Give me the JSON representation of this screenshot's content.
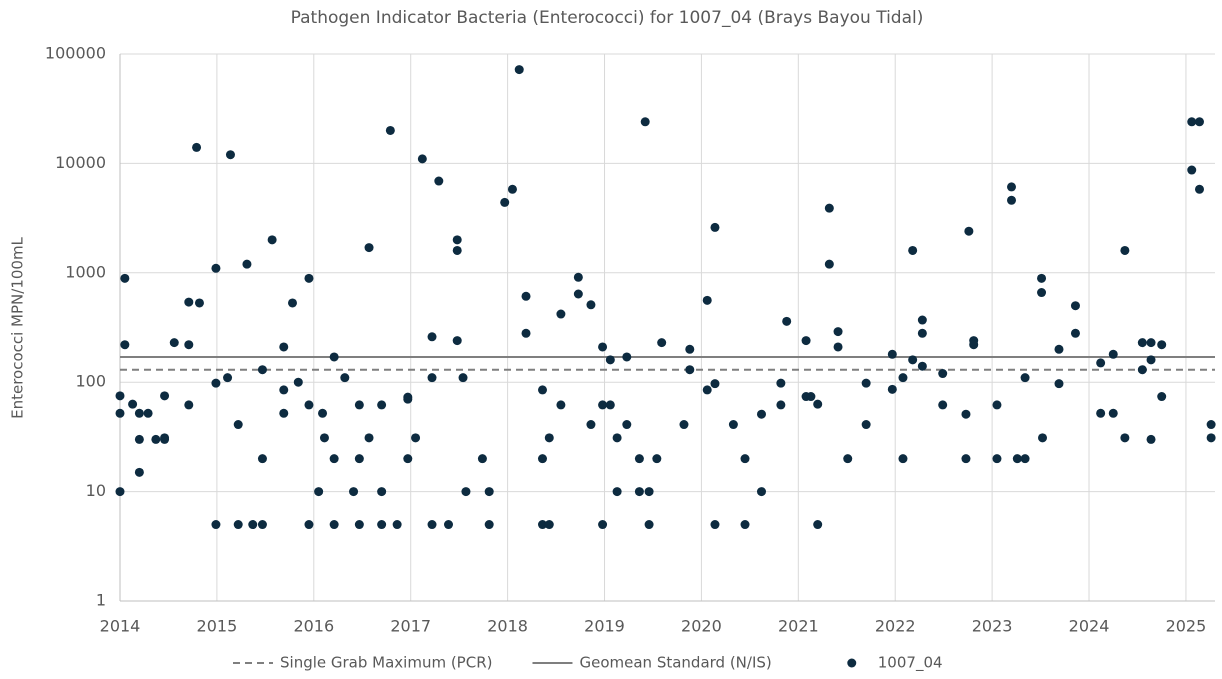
{
  "chart_data": {
    "type": "scatter",
    "title": "Pathogen Indicator Bacteria (Enterococci) for 1007_04 (Brays Bayou Tidal)",
    "y_label": "Enterococci MPN/100mL",
    "log_y": true,
    "grid": true,
    "legend_position": "bottom",
    "xlim": [
      2014,
      2025.3
    ],
    "xticks": [
      2014,
      2015,
      2016,
      2017,
      2018,
      2019,
      2020,
      2021,
      2022,
      2023,
      2024,
      2025
    ],
    "ylim": [
      1,
      100000
    ],
    "yticks": [
      1,
      10,
      100,
      1000,
      10000,
      100000
    ],
    "reference_lines": [
      {
        "name": "Single Grab Maximum (PCR)",
        "value": 130,
        "color": "#7f7f7f",
        "dash": true
      },
      {
        "name": "Geomean Standard (N/IS)",
        "value": 170,
        "color": "#7f7f7f",
        "dash": false
      }
    ],
    "x": [
      2014.0,
      2014.0,
      2014.0,
      2014.05,
      2014.05,
      2014.13,
      2014.2,
      2014.2,
      2014.2,
      2014.29,
      2014.37,
      2014.46,
      2014.46,
      2014.46,
      2014.56,
      2014.71,
      2014.71,
      2014.71,
      2014.79,
      2014.82,
      2014.99,
      2014.99,
      2014.99,
      2015.11,
      2015.14,
      2015.22,
      2015.22,
      2015.31,
      2015.37,
      2015.47,
      2015.47,
      2015.47,
      2015.57,
      2015.69,
      2015.69,
      2015.69,
      2015.78,
      2015.84,
      2015.95,
      2015.95,
      2015.95,
      2016.05,
      2016.09,
      2016.11,
      2016.21,
      2016.21,
      2016.21,
      2016.32,
      2016.41,
      2016.47,
      2016.47,
      2016.47,
      2016.57,
      2016.57,
      2016.7,
      2016.7,
      2016.7,
      2016.79,
      2016.86,
      2016.97,
      2016.97,
      2016.97,
      2017.05,
      2017.12,
      2017.22,
      2017.22,
      2017.22,
      2017.29,
      2017.39,
      2017.48,
      2017.48,
      2017.48,
      2017.54,
      2017.57,
      2017.74,
      2017.81,
      2017.81,
      2017.97,
      2018.05,
      2018.12,
      2018.19,
      2018.19,
      2018.36,
      2018.36,
      2018.36,
      2018.43,
      2018.43,
      2018.55,
      2018.55,
      2018.73,
      2018.73,
      2018.86,
      2018.86,
      2018.98,
      2018.98,
      2018.98,
      2019.06,
      2019.06,
      2019.13,
      2019.13,
      2019.23,
      2019.23,
      2019.36,
      2019.36,
      2019.42,
      2019.46,
      2019.46,
      2019.54,
      2019.59,
      2019.82,
      2019.88,
      2019.88,
      2020.06,
      2020.06,
      2020.14,
      2020.14,
      2020.14,
      2020.33,
      2020.45,
      2020.45,
      2020.62,
      2020.62,
      2020.82,
      2020.82,
      2020.88,
      2021.08,
      2021.08,
      2021.13,
      2021.2,
      2021.2,
      2021.32,
      2021.32,
      2021.41,
      2021.41,
      2021.51,
      2021.7,
      2021.7,
      2021.97,
      2021.97,
      2022.08,
      2022.08,
      2022.18,
      2022.18,
      2022.28,
      2022.28,
      2022.28,
      2022.49,
      2022.49,
      2022.73,
      2022.73,
      2022.76,
      2022.81,
      2022.81,
      2023.05,
      2023.05,
      2023.2,
      2023.2,
      2023.26,
      2023.34,
      2023.34,
      2023.51,
      2023.51,
      2023.52,
      2023.69,
      2023.69,
      2023.86,
      2023.86,
      2024.12,
      2024.12,
      2024.25,
      2024.25,
      2024.37,
      2024.37,
      2024.55,
      2024.55,
      2024.64,
      2024.64,
      2024.64,
      2024.75,
      2024.75,
      2025.06,
      2025.06,
      2025.14,
      2025.14,
      2025.26,
      2025.26
    ],
    "series": [
      {
        "name": "1007_04",
        "color": "#0d2b40",
        "values": [
          75,
          52,
          10,
          890,
          220,
          63,
          52,
          30,
          15,
          52,
          30,
          75,
          31,
          30,
          230,
          540,
          220,
          62,
          14000,
          530,
          1100,
          98,
          5,
          110,
          12000,
          41,
          5,
          1200,
          5,
          130,
          20,
          5,
          2000,
          210,
          85,
          52,
          530,
          100,
          890,
          62,
          5,
          10,
          52,
          31,
          170,
          20,
          5,
          110,
          10,
          62,
          20,
          5,
          1700,
          31,
          62,
          10,
          5,
          20000,
          5,
          73,
          70,
          20,
          31,
          11000,
          260,
          110,
          5,
          6900,
          5,
          2000,
          1600,
          240,
          110,
          10,
          20,
          10,
          5,
          4400,
          5800,
          72000,
          610,
          280,
          85,
          20,
          5,
          31,
          5,
          420,
          62,
          910,
          640,
          510,
          41,
          210,
          62,
          5,
          160,
          62,
          31,
          10,
          170,
          41,
          20,
          10,
          24000,
          10,
          5,
          20,
          230,
          41,
          200,
          130,
          560,
          85,
          2600,
          97,
          5,
          41,
          20,
          5,
          51,
          10,
          98,
          62,
          360,
          240,
          74,
          74,
          63,
          5,
          3900,
          1200,
          290,
          210,
          20,
          98,
          41,
          180,
          86,
          110,
          20,
          1600,
          160,
          370,
          280,
          140,
          120,
          62,
          51,
          20,
          2400,
          240,
          220,
          62,
          20,
          6100,
          4600,
          20,
          110,
          20,
          890,
          660,
          31,
          200,
          97,
          500,
          280,
          150,
          52,
          180,
          52,
          1600,
          31,
          230,
          130,
          230,
          160,
          30,
          220,
          74,
          24000,
          8700,
          24000,
          5800,
          41,
          31
        ]
      }
    ]
  }
}
